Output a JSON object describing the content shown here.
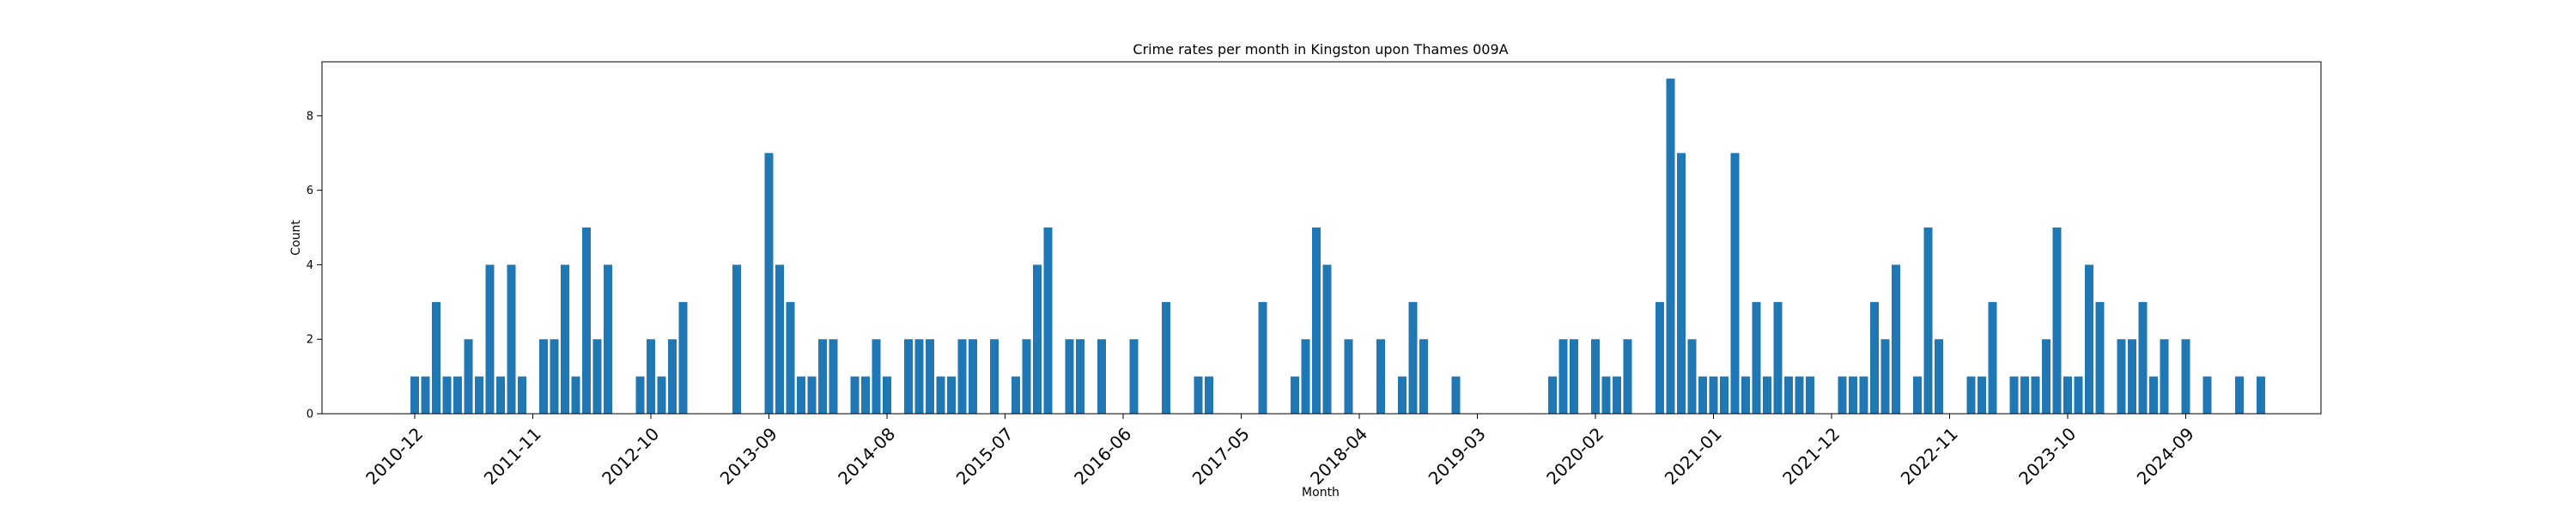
{
  "chart_data": {
    "type": "bar",
    "title": "Crime rates per month in Kingston upon Thames 009A",
    "xlabel": "Month",
    "ylabel": "Count",
    "ylim": [
      0,
      9.45
    ],
    "yticks": [
      0,
      2,
      4,
      6,
      8
    ],
    "xticks": [
      "2010-12",
      "2011-11",
      "2012-10",
      "2013-09",
      "2014-08",
      "2015-07",
      "2016-06",
      "2017-05",
      "2018-04",
      "2019-03",
      "2020-02",
      "2021-01",
      "2021-12",
      "2022-11",
      "2023-10",
      "2024-09"
    ],
    "start_month": "2010-12",
    "values": [
      1,
      1,
      3,
      1,
      1,
      2,
      1,
      4,
      1,
      4,
      1,
      0,
      2,
      2,
      4,
      1,
      5,
      2,
      4,
      0,
      0,
      1,
      2,
      1,
      2,
      3,
      0,
      0,
      0,
      0,
      4,
      0,
      0,
      7,
      4,
      3,
      1,
      1,
      2,
      2,
      0,
      1,
      1,
      2,
      1,
      0,
      2,
      2,
      2,
      1,
      1,
      2,
      2,
      0,
      2,
      0,
      1,
      2,
      4,
      5,
      0,
      2,
      2,
      0,
      2,
      0,
      0,
      2,
      0,
      0,
      3,
      0,
      0,
      1,
      1,
      0,
      0,
      0,
      0,
      3,
      0,
      0,
      1,
      2,
      5,
      4,
      0,
      2,
      0,
      0,
      2,
      0,
      1,
      3,
      2,
      0,
      0,
      1,
      0,
      0,
      0,
      0,
      0,
      0,
      0,
      0,
      1,
      2,
      2,
      0,
      2,
      1,
      1,
      2,
      0,
      0,
      3,
      9,
      7,
      2,
      1,
      1,
      1,
      7,
      1,
      3,
      1,
      3,
      1,
      1,
      1,
      0,
      0,
      1,
      1,
      1,
      3,
      2,
      4,
      0,
      1,
      5,
      2,
      0,
      0,
      1,
      1,
      3,
      0,
      1,
      1,
      1,
      2,
      5,
      1,
      1,
      4,
      3,
      0,
      2,
      2,
      3,
      1,
      2,
      0,
      2,
      0,
      1,
      0,
      0,
      1,
      0,
      1
    ]
  }
}
